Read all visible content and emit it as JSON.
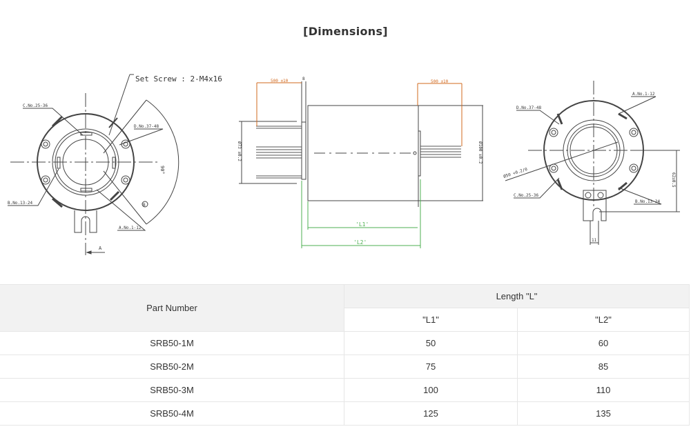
{
  "title": "[Dimensions]",
  "drawing": {
    "set_screw": "Set Screw : 2-M4x16",
    "front_view": {
      "label_c": "C.No.25-36",
      "label_d": "D.No.37-48",
      "label_b": "B.No.13-24",
      "label_a": "A.No.1-12",
      "angle": "90°",
      "view_marker": "A",
      "hole_marker": "B"
    },
    "side_view": {
      "lead_left": "500 ±10",
      "lead_right": "500 ±10",
      "dia_left": "Ø73 ±0.2",
      "dia_right": "Ø100 ±0.2",
      "l1": "'L1'",
      "l2": "'L2'",
      "flange": "8"
    },
    "rear_view": {
      "label_a": "A.No.1-12",
      "label_d": "D.No.37-48",
      "label_c": "C.No.25-36",
      "label_b": "B.No.13-24",
      "bore": "Ø50 +0.2/0",
      "height": "62±0.5",
      "slot": "11"
    },
    "colors": {
      "lead_dim": "#d2691e",
      "length_dim": "#4caf50",
      "line": "#444444"
    }
  },
  "table": {
    "headers": {
      "part_number": "Part Number",
      "length": "Length \"L\"",
      "l1": "\"L1\"",
      "l2": "\"L2\""
    },
    "rows": [
      {
        "part": "SRB50-1M",
        "l1": "50",
        "l2": "60"
      },
      {
        "part": "SRB50-2M",
        "l1": "75",
        "l2": "85"
      },
      {
        "part": "SRB50-3M",
        "l1": "100",
        "l2": "110"
      },
      {
        "part": "SRB50-4M",
        "l1": "125",
        "l2": "135"
      }
    ]
  }
}
